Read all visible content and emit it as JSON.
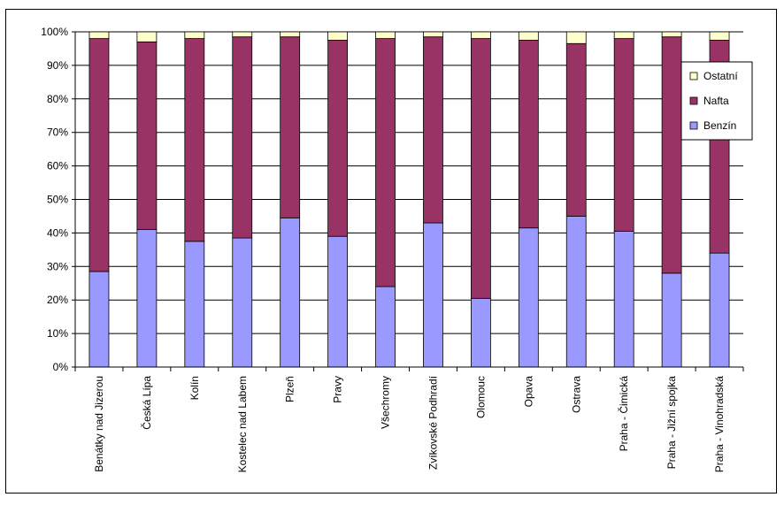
{
  "chart_data": {
    "type": "bar",
    "stacked": true,
    "percent_stacked": true,
    "categories": [
      "Benátky nad Jizerou",
      "Česká Lípa",
      "Kolín",
      "Kostelec nad Labem",
      "Plzeň",
      "Pravy",
      "Všechromy",
      "Zvíkovské Podhradí",
      "Olomouc",
      "Opava",
      "Ostrava",
      "Praha - Čimická",
      "Praha - Jižní spojka",
      "Praha - Vinohradská"
    ],
    "series": [
      {
        "name": "Benzín",
        "color": "#9999ff",
        "values": [
          28.5,
          41,
          37.5,
          38.5,
          44.5,
          39,
          24,
          43,
          20.5,
          41.5,
          45,
          40.5,
          28,
          34
        ]
      },
      {
        "name": "Nafta",
        "color": "#993366",
        "values": [
          69.5,
          56,
          60.5,
          60,
          54,
          58.5,
          74,
          55.5,
          77.5,
          56,
          51.5,
          57.5,
          70.5,
          63.5
        ]
      },
      {
        "name": "Ostatní",
        "color": "#ffffcc",
        "values": [
          2,
          3,
          2,
          1.5,
          1.5,
          2.5,
          2,
          1.5,
          2,
          2.5,
          3.5,
          2,
          1.5,
          2.5
        ]
      }
    ],
    "ylim": [
      0,
      100
    ],
    "yticks": [
      "0%",
      "10%",
      "20%",
      "30%",
      "40%",
      "50%",
      "60%",
      "70%",
      "80%",
      "90%",
      "100%"
    ],
    "grid": "horizontal",
    "legend_position": "right"
  }
}
